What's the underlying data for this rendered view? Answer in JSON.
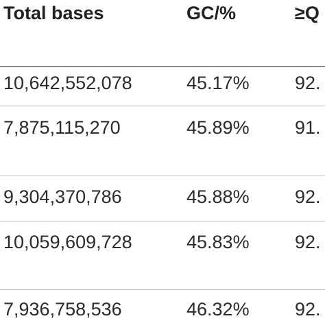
{
  "table": {
    "header": [
      "Total bases",
      "GC/%",
      "≥Q"
    ],
    "rows": [
      [
        "10,642,552,078",
        "45.17%",
        "92."
      ],
      [
        "7,875,115,270",
        "45.89%",
        "91."
      ],
      [
        "9,304,370,786",
        "45.88%",
        "92."
      ],
      [
        "10,059,609,728",
        "45.83%",
        "92."
      ],
      [
        "7,936,758,536",
        "46.32%",
        "92."
      ]
    ]
  }
}
